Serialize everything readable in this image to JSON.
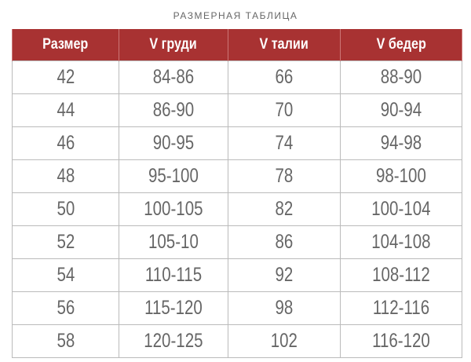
{
  "title": "РАЗМЕРНАЯ ТАБЛИЦА",
  "header_color": "#a83232",
  "columns": [
    "Размер",
    "V груди",
    "V талии",
    "V бедер"
  ],
  "rows": [
    [
      "42",
      "84-86",
      "66",
      "88-90"
    ],
    [
      "44",
      "86-90",
      "70",
      "90-94"
    ],
    [
      "46",
      "90-95",
      "74",
      "94-98"
    ],
    [
      "48",
      "95-100",
      "78",
      "98-100"
    ],
    [
      "50",
      "100-105",
      "82",
      "100-104"
    ],
    [
      "52",
      "105-10",
      "86",
      "104-108"
    ],
    [
      "54",
      "110-115",
      "92",
      "108-112"
    ],
    [
      "56",
      "115-120",
      "98",
      "112-116"
    ],
    [
      "58",
      "120-125",
      "102",
      "116-120"
    ]
  ]
}
